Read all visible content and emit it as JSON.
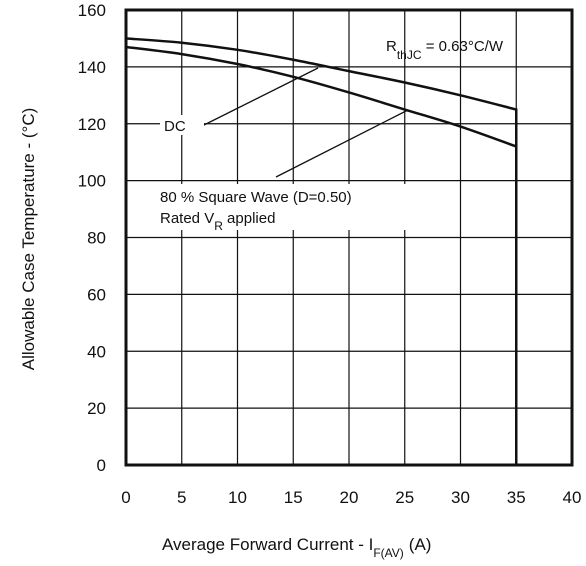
{
  "chart_data": {
    "type": "line",
    "xlabel": {
      "main": "Average Forward Current - I",
      "sub": "F(AV)",
      "unit": "(A)"
    },
    "ylabel": "Allowable Case Temperature - (°C)",
    "xlim": [
      0,
      40
    ],
    "ylim": [
      0,
      160
    ],
    "x_ticks": [
      "0",
      "5",
      "10",
      "15",
      "20",
      "25",
      "30",
      "35",
      "40"
    ],
    "y_ticks": [
      "0",
      "20",
      "40",
      "60",
      "80",
      "100",
      "120",
      "140",
      "160"
    ],
    "grid": true,
    "series": [
      {
        "name": "DC",
        "x": [
          0,
          5,
          10,
          15,
          20,
          25,
          30,
          35,
          35
        ],
        "y": [
          150,
          148.5,
          146,
          142.5,
          138.5,
          134.5,
          130,
          125,
          0
        ]
      },
      {
        "name": "80 % Square Wave (D=0.50)",
        "x": [
          0,
          5,
          10,
          15,
          20,
          25,
          30,
          35
        ],
        "y": [
          147,
          144.5,
          141,
          136.5,
          131,
          125,
          119,
          112
        ]
      }
    ],
    "annotations": {
      "rth": {
        "main": "R",
        "sub": "thJC",
        "rest": " = 0.63°C/W"
      },
      "dc": "DC",
      "square_line1": "80 % Square Wave (D=0.50)",
      "square_line2": {
        "main": "Rated V",
        "sub": "R",
        "rest": " applied"
      }
    }
  }
}
